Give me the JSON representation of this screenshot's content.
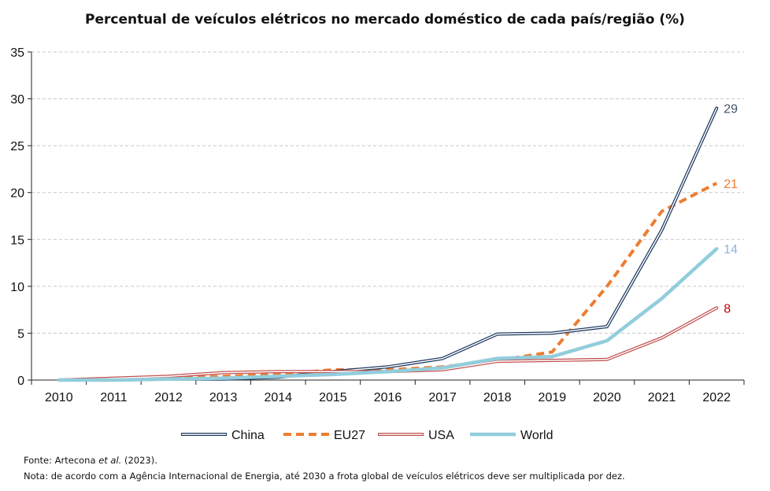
{
  "chart_data": {
    "type": "line",
    "title": "Percentual de veículos elétricos no mercado doméstico de cada país/região (%)",
    "xlabel": "",
    "ylabel": "",
    "categories": [
      "2010",
      "2011",
      "2012",
      "2013",
      "2014",
      "2015",
      "2016",
      "2017",
      "2018",
      "2019",
      "2020",
      "2021",
      "2022"
    ],
    "yticks": [
      0,
      5,
      10,
      15,
      20,
      25,
      30,
      35
    ],
    "ylim": [
      0,
      35
    ],
    "grid": "horizontal dashed",
    "legend_position": "bottom",
    "series": [
      {
        "name": "China",
        "color": "#1f3a60",
        "style": "double-outline",
        "end_label": "29",
        "label_color": "#44546a",
        "values": [
          0.0,
          0.0,
          0.1,
          0.1,
          0.3,
          0.9,
          1.4,
          2.3,
          4.9,
          5.0,
          5.7,
          16.0,
          29.0
        ]
      },
      {
        "name": "EU27",
        "color": "#ed7d31",
        "style": "dashed",
        "end_label": "21",
        "label_color": "#ed7d31",
        "values": [
          0.0,
          0.1,
          0.2,
          0.4,
          0.6,
          1.1,
          1.1,
          1.4,
          2.1,
          3.0,
          10.0,
          18.0,
          21.0
        ]
      },
      {
        "name": "USA",
        "color": "#c0504d",
        "style": "double-outline",
        "end_label": "8",
        "label_color": "#c00000",
        "values": [
          0.0,
          0.2,
          0.4,
          0.8,
          0.9,
          0.9,
          0.9,
          1.1,
          2.0,
          2.1,
          2.2,
          4.5,
          7.7
        ]
      },
      {
        "name": "World",
        "color": "#92cddc",
        "style": "thick",
        "end_label": "14",
        "label_color": "#8eb4e3",
        "values": [
          0.0,
          0.0,
          0.1,
          0.2,
          0.4,
          0.6,
          0.9,
          1.3,
          2.3,
          2.5,
          4.2,
          8.7,
          14.0
        ]
      }
    ]
  },
  "source_note": {
    "prefix": "Fonte: Artecona ",
    "italic": "et al.",
    "suffix": " (2023)."
  },
  "footnote": "Nota: de acordo com a Agência Internacional de Energia, até 2030 a frota global de veículos elétricos deve ser multiplicada por dez."
}
